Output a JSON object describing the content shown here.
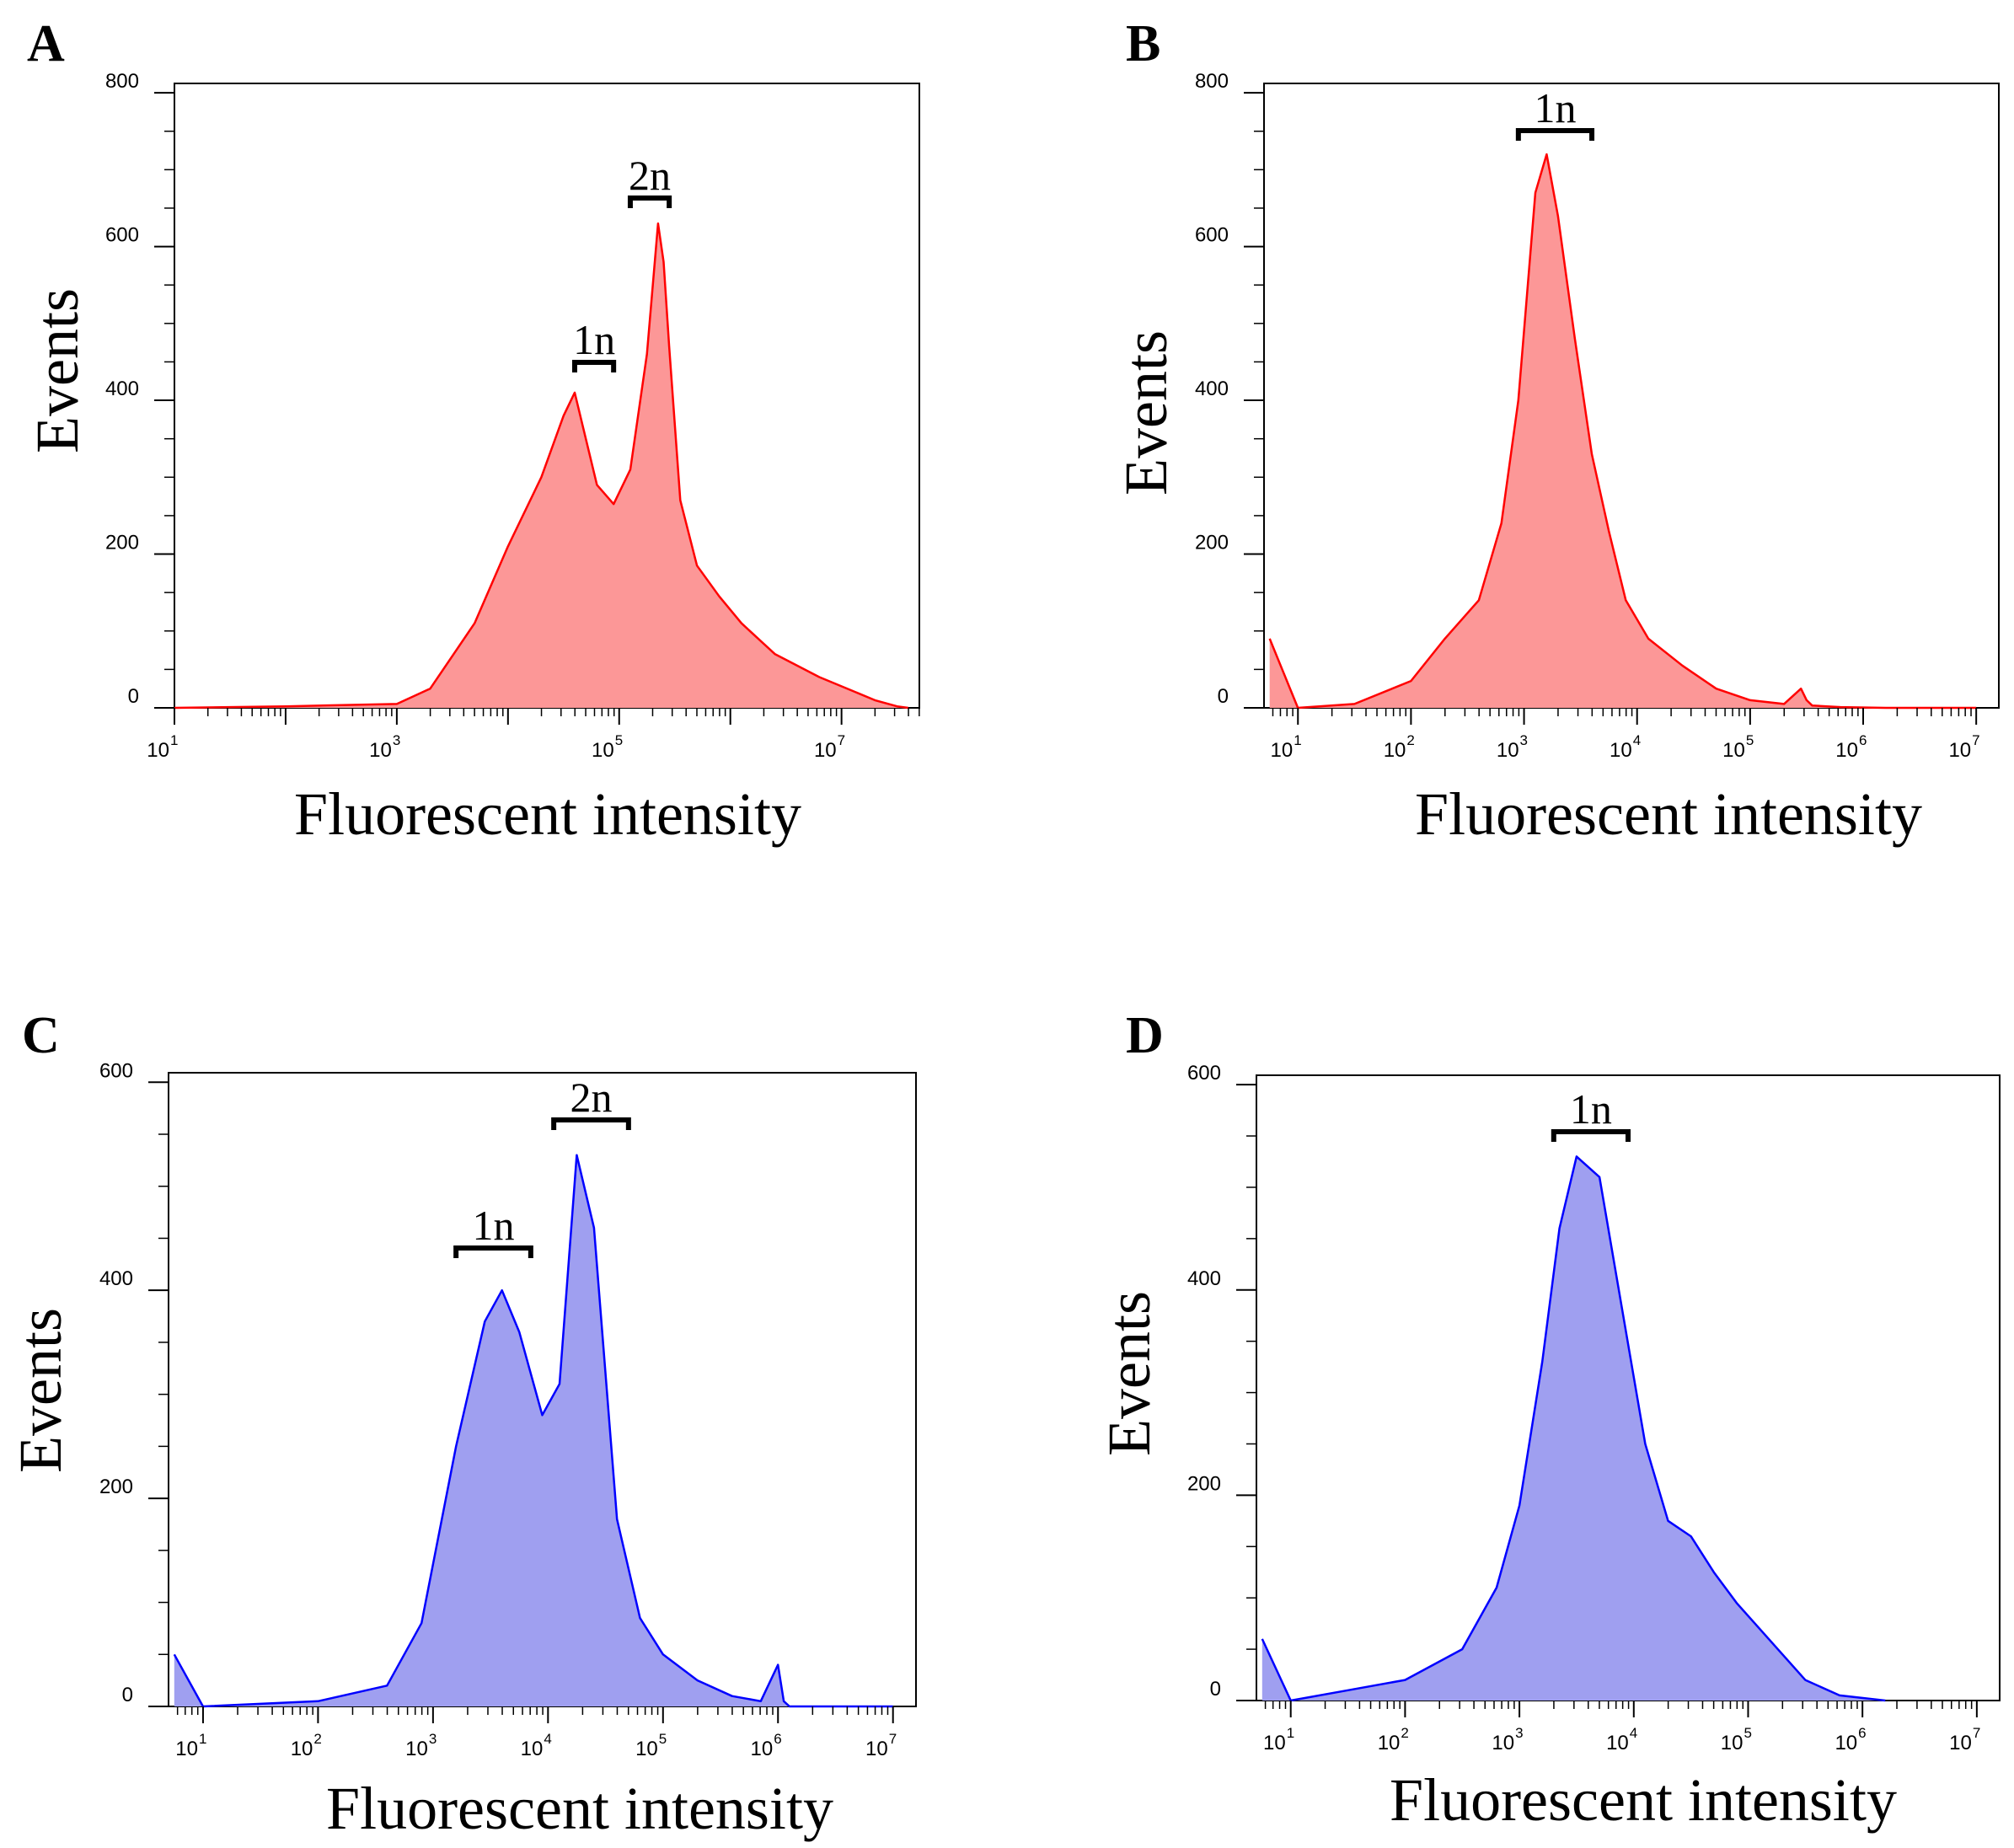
{
  "figure": {
    "panels": [
      {
        "id": "A",
        "letter": "A",
        "color_line": "#ff0000",
        "color_fill": "#fc9797",
        "ylabel": "Events",
        "xlabel": "Fluorescent intensity",
        "yticks": [
          "0",
          "200",
          "400",
          "600",
          "800"
        ],
        "xticks": [
          {
            "base": "10",
            "exp": "1"
          },
          {
            "base": "10",
            "exp": "3"
          },
          {
            "base": "10",
            "exp": "5"
          },
          {
            "base": "10",
            "exp": "7"
          }
        ],
        "peaks": [
          {
            "label": "1n"
          },
          {
            "label": "2n"
          }
        ]
      },
      {
        "id": "B",
        "letter": "B",
        "color_line": "#ff0000",
        "color_fill": "#fc9797",
        "ylabel": "Events",
        "xlabel": "Fluorescent intensity",
        "yticks": [
          "0",
          "200",
          "400",
          "600",
          "800"
        ],
        "xticks": [
          {
            "base": "10",
            "exp": "1"
          },
          {
            "base": "10",
            "exp": "2"
          },
          {
            "base": "10",
            "exp": "3"
          },
          {
            "base": "10",
            "exp": "4"
          },
          {
            "base": "10",
            "exp": "5"
          },
          {
            "base": "10",
            "exp": "6"
          },
          {
            "base": "10",
            "exp": "7"
          }
        ],
        "peaks": [
          {
            "label": "1n"
          }
        ]
      },
      {
        "id": "C",
        "letter": "C",
        "color_line": "#0000ff",
        "color_fill": "#9f9ff0",
        "ylabel": "Events",
        "xlabel": "Fluorescent intensity",
        "yticks": [
          "0",
          "200",
          "400",
          "600"
        ],
        "xticks": [
          {
            "base": "10",
            "exp": "1"
          },
          {
            "base": "10",
            "exp": "2"
          },
          {
            "base": "10",
            "exp": "3"
          },
          {
            "base": "10",
            "exp": "4"
          },
          {
            "base": "10",
            "exp": "5"
          },
          {
            "base": "10",
            "exp": "6"
          },
          {
            "base": "10",
            "exp": "7"
          }
        ],
        "peaks": [
          {
            "label": "1n"
          },
          {
            "label": "2n"
          }
        ]
      },
      {
        "id": "D",
        "letter": "D",
        "color_line": "#0000ff",
        "color_fill": "#9f9ff0",
        "ylabel": "Events",
        "xlabel": "Fluorescent intensity",
        "yticks": [
          "0",
          "200",
          "400",
          "600"
        ],
        "xticks": [
          {
            "base": "10",
            "exp": "1"
          },
          {
            "base": "10",
            "exp": "2"
          },
          {
            "base": "10",
            "exp": "3"
          },
          {
            "base": "10",
            "exp": "4"
          },
          {
            "base": "10",
            "exp": "5"
          },
          {
            "base": "10",
            "exp": "6"
          },
          {
            "base": "10",
            "exp": "7"
          }
        ],
        "peaks": [
          {
            "label": "1n"
          }
        ]
      }
    ]
  },
  "chart_data": [
    {
      "type": "area",
      "panel": "A",
      "title": "",
      "xlabel": "Fluorescent intensity",
      "ylabel": "Events",
      "xscale": "log",
      "xlim": [
        1,
        7.7
      ],
      "ylim": [
        0,
        800
      ],
      "x_log10": [
        1.0,
        2.0,
        3.0,
        3.3,
        3.7,
        4.0,
        4.3,
        4.5,
        4.6,
        4.7,
        4.8,
        4.95,
        5.1,
        5.25,
        5.35,
        5.4,
        5.45,
        5.55,
        5.7,
        5.9,
        6.1,
        6.4,
        6.8,
        7.1,
        7.3,
        7.5,
        7.6
      ],
      "events": [
        0,
        2,
        5,
        25,
        110,
        210,
        300,
        380,
        410,
        350,
        290,
        265,
        310,
        460,
        630,
        580,
        470,
        270,
        185,
        145,
        110,
        70,
        40,
        22,
        10,
        2,
        0
      ],
      "annotations": [
        "1n",
        "2n"
      ]
    },
    {
      "type": "area",
      "panel": "B",
      "title": "",
      "xlabel": "Fluorescent intensity",
      "ylabel": "Events",
      "xscale": "log",
      "xlim": [
        0.7,
        7.2
      ],
      "ylim": [
        0,
        800
      ],
      "x_log10": [
        0.75,
        1.0,
        1.5,
        2.0,
        2.3,
        2.6,
        2.8,
        2.95,
        3.1,
        3.2,
        3.3,
        3.45,
        3.6,
        3.75,
        3.9,
        4.1,
        4.4,
        4.7,
        5.0,
        5.3,
        5.45,
        5.5,
        5.55,
        5.8,
        6.2,
        7.0
      ],
      "events": [
        90,
        0,
        5,
        35,
        90,
        140,
        240,
        400,
        670,
        720,
        640,
        480,
        330,
        230,
        140,
        90,
        55,
        25,
        10,
        5,
        25,
        10,
        3,
        1,
        0,
        0
      ],
      "annotations": [
        "1n"
      ]
    },
    {
      "type": "area",
      "panel": "C",
      "title": "",
      "xlabel": "Fluorescent intensity",
      "ylabel": "Events",
      "xscale": "log",
      "xlim": [
        0.7,
        7.2
      ],
      "ylim": [
        0,
        600
      ],
      "x_log10": [
        0.75,
        1.0,
        2.0,
        2.6,
        2.9,
        3.2,
        3.45,
        3.6,
        3.75,
        3.95,
        4.1,
        4.25,
        4.4,
        4.6,
        4.8,
        5.0,
        5.3,
        5.6,
        5.85,
        6.0,
        6.05,
        6.1,
        6.5,
        7.0
      ],
      "events": [
        50,
        0,
        5,
        20,
        80,
        250,
        370,
        400,
        360,
        280,
        310,
        530,
        460,
        180,
        85,
        50,
        25,
        10,
        5,
        40,
        5,
        0,
        0,
        0
      ],
      "annotations": [
        "1n",
        "2n"
      ]
    },
    {
      "type": "area",
      "panel": "D",
      "title": "",
      "xlabel": "Fluorescent intensity",
      "ylabel": "Events",
      "xscale": "log",
      "xlim": [
        0.7,
        7.2
      ],
      "ylim": [
        0,
        600
      ],
      "x_log10": [
        0.75,
        1.0,
        1.5,
        2.0,
        2.5,
        2.8,
        3.0,
        3.2,
        3.35,
        3.5,
        3.7,
        3.9,
        4.1,
        4.3,
        4.5,
        4.7,
        4.9,
        5.1,
        5.3,
        5.5,
        5.8,
        6.2
      ],
      "events": [
        60,
        0,
        10,
        20,
        50,
        110,
        190,
        330,
        460,
        530,
        510,
        380,
        250,
        175,
        160,
        125,
        95,
        70,
        45,
        20,
        5,
        0
      ],
      "annotations": [
        "1n"
      ]
    }
  ]
}
